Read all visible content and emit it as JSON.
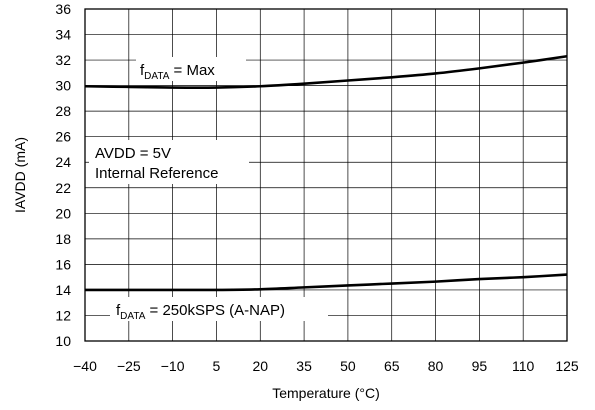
{
  "chart_data": {
    "type": "line",
    "title": "",
    "xlabel": "Temperature (°C)",
    "ylabel": "IAVDD (mA)",
    "xlim": [
      -40,
      125
    ],
    "ylim": [
      10,
      36
    ],
    "x_ticks": [
      -40,
      -25,
      -10,
      5,
      20,
      35,
      50,
      65,
      80,
      95,
      110,
      125
    ],
    "x_tick_labels": [
      "−40",
      "−25",
      "−10",
      "5",
      "20",
      "35",
      "50",
      "65",
      "80",
      "95",
      "110",
      "125"
    ],
    "y_ticks": [
      10,
      12,
      14,
      16,
      18,
      20,
      22,
      24,
      26,
      28,
      30,
      32,
      34,
      36
    ],
    "y_tick_labels": [
      "10",
      "12",
      "14",
      "16",
      "18",
      "20",
      "22",
      "24",
      "26",
      "28",
      "30",
      "32",
      "34",
      "36"
    ],
    "grid": true,
    "series": [
      {
        "x": [
          -40,
          -25,
          -10,
          5,
          20,
          35,
          50,
          65,
          80,
          95,
          110,
          125
        ],
        "y": [
          29.95,
          29.9,
          29.85,
          29.85,
          29.95,
          30.15,
          30.4,
          30.65,
          30.95,
          31.35,
          31.8,
          32.3
        ]
      },
      {
        "x": [
          -40,
          -25,
          -10,
          5,
          20,
          35,
          50,
          65,
          80,
          95,
          110,
          125
        ],
        "y": [
          14.0,
          14.0,
          14.0,
          14.0,
          14.05,
          14.2,
          14.35,
          14.5,
          14.65,
          14.85,
          15.0,
          15.2
        ]
      }
    ],
    "annotations": {
      "fmax": {
        "main": "f",
        "sub": "DATA",
        "rest": " = Max"
      },
      "f250": {
        "main": "f",
        "sub": "DATA",
        "rest": " = 250kSPS (A-NAP)"
      },
      "cond_line1": "AVDD = 5V",
      "cond_line2": "Internal Reference"
    }
  }
}
